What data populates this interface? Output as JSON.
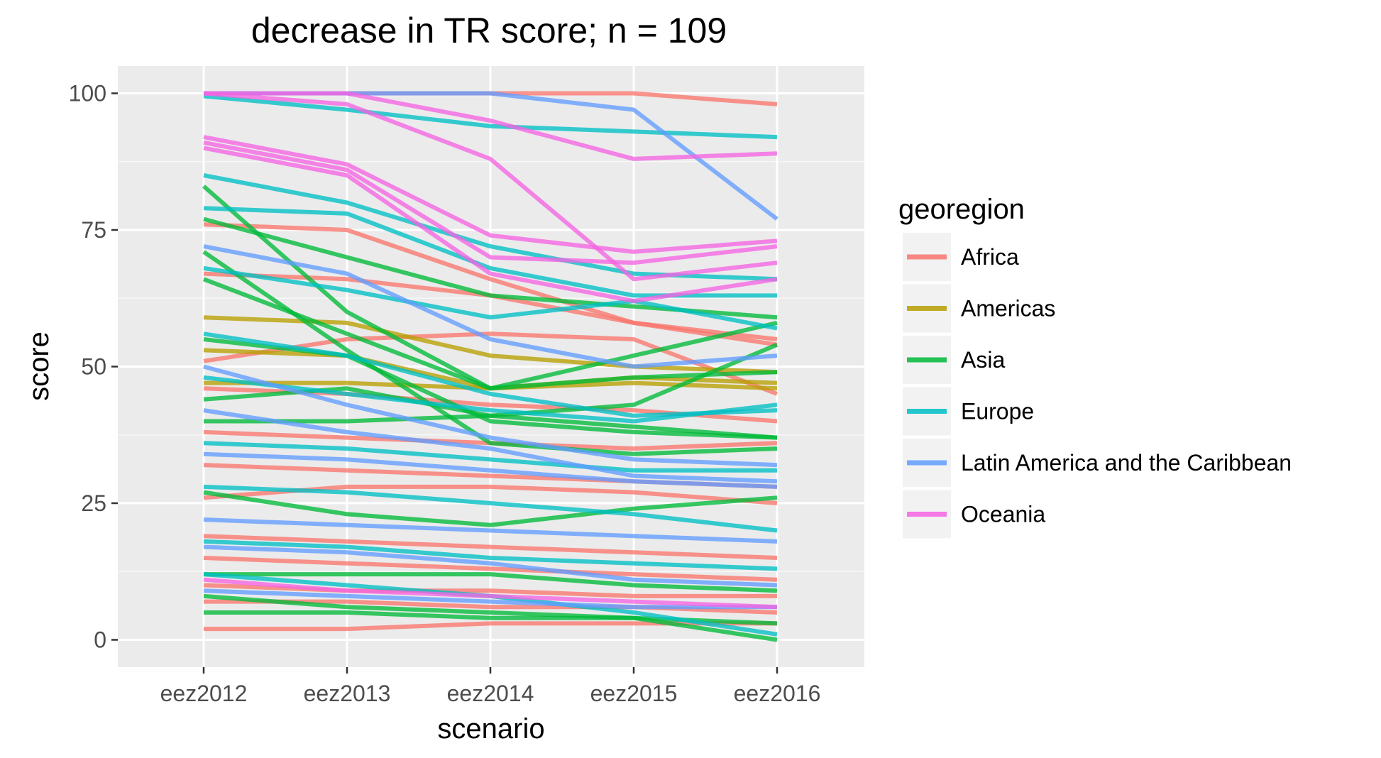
{
  "chart_data": {
    "type": "line",
    "title": "decrease in TR score; n = 109",
    "xlabel": "scenario",
    "ylabel": "score",
    "x": [
      "eez2012",
      "eez2013",
      "eez2014",
      "eez2015",
      "eez2016"
    ],
    "ylim": [
      -5,
      105
    ],
    "yticks": [
      0,
      25,
      50,
      75,
      100
    ],
    "grid": true,
    "legend": {
      "title": "georegion",
      "position": "right",
      "entries": [
        {
          "name": "Africa",
          "color": "#F8766D"
        },
        {
          "name": "Americas",
          "color": "#B79F00"
        },
        {
          "name": "Asia",
          "color": "#00BA38"
        },
        {
          "name": "Europe",
          "color": "#00BFC4"
        },
        {
          "name": "Latin America and the Caribbean",
          "color": "#619CFF"
        },
        {
          "name": "Oceania",
          "color": "#F564E3"
        }
      ]
    },
    "series": [
      {
        "group": "Africa",
        "values": [
          100,
          100,
          100,
          100,
          98
        ]
      },
      {
        "group": "Africa",
        "values": [
          76,
          75,
          66,
          58,
          54
        ]
      },
      {
        "group": "Africa",
        "values": [
          67,
          66,
          63,
          58,
          55
        ]
      },
      {
        "group": "Africa",
        "values": [
          51,
          55,
          56,
          55,
          45
        ]
      },
      {
        "group": "Africa",
        "values": [
          46,
          45,
          43,
          42,
          40
        ]
      },
      {
        "group": "Africa",
        "values": [
          38,
          37,
          36,
          35,
          36
        ]
      },
      {
        "group": "Africa",
        "values": [
          32,
          31,
          30,
          29,
          28
        ]
      },
      {
        "group": "Africa",
        "values": [
          26,
          28,
          28,
          27,
          25
        ]
      },
      {
        "group": "Africa",
        "values": [
          19,
          18,
          17,
          16,
          15
        ]
      },
      {
        "group": "Africa",
        "values": [
          15,
          14,
          13,
          12,
          11
        ]
      },
      {
        "group": "Africa",
        "values": [
          10,
          9,
          9,
          8,
          8
        ]
      },
      {
        "group": "Africa",
        "values": [
          7,
          7,
          6,
          6,
          5
        ]
      },
      {
        "group": "Africa",
        "values": [
          2,
          2,
          3,
          3,
          3
        ]
      },
      {
        "group": "Americas",
        "values": [
          59,
          58,
          52,
          50,
          49
        ]
      },
      {
        "group": "Americas",
        "values": [
          53,
          52,
          46,
          48,
          47
        ]
      },
      {
        "group": "Americas",
        "values": [
          47,
          47,
          46,
          47,
          46
        ]
      },
      {
        "group": "Asia",
        "values": [
          83,
          60,
          46,
          52,
          58
        ]
      },
      {
        "group": "Asia",
        "values": [
          77,
          70,
          63,
          61,
          59
        ]
      },
      {
        "group": "Asia",
        "values": [
          71,
          53,
          36,
          34,
          35
        ]
      },
      {
        "group": "Asia",
        "values": [
          66,
          56,
          46,
          48,
          49
        ]
      },
      {
        "group": "Asia",
        "values": [
          55,
          52,
          40,
          38,
          37
        ]
      },
      {
        "group": "Asia",
        "values": [
          44,
          46,
          41,
          43,
          54
        ]
      },
      {
        "group": "Asia",
        "values": [
          40,
          40,
          41,
          39,
          37
        ]
      },
      {
        "group": "Asia",
        "values": [
          27,
          23,
          21,
          24,
          26
        ]
      },
      {
        "group": "Asia",
        "values": [
          12,
          12,
          12,
          10,
          9
        ]
      },
      {
        "group": "Asia",
        "values": [
          8,
          6,
          5,
          4,
          0
        ]
      },
      {
        "group": "Asia",
        "values": [
          5,
          5,
          4,
          4,
          3
        ]
      },
      {
        "group": "Europe",
        "values": [
          99.5,
          97,
          94,
          93,
          92
        ]
      },
      {
        "group": "Europe",
        "values": [
          85,
          80,
          72,
          67,
          66
        ]
      },
      {
        "group": "Europe",
        "values": [
          79,
          78,
          68,
          63,
          63
        ]
      },
      {
        "group": "Europe",
        "values": [
          68,
          64,
          59,
          62,
          57
        ]
      },
      {
        "group": "Europe",
        "values": [
          56,
          52,
          45,
          41,
          42
        ]
      },
      {
        "group": "Europe",
        "values": [
          48,
          45,
          42,
          40,
          43
        ]
      },
      {
        "group": "Europe",
        "values": [
          36,
          35,
          33,
          31,
          31
        ]
      },
      {
        "group": "Europe",
        "values": [
          28,
          27,
          25,
          23,
          20
        ]
      },
      {
        "group": "Europe",
        "values": [
          18,
          17,
          15,
          14,
          13
        ]
      },
      {
        "group": "Europe",
        "values": [
          12,
          10,
          8,
          5,
          1
        ]
      },
      {
        "group": "Latin America and the Caribbean",
        "values": [
          100,
          100,
          100,
          97,
          77
        ]
      },
      {
        "group": "Latin America and the Caribbean",
        "values": [
          72,
          67,
          55,
          50,
          52
        ]
      },
      {
        "group": "Latin America and the Caribbean",
        "values": [
          50,
          43,
          37,
          33,
          32
        ]
      },
      {
        "group": "Latin America and the Caribbean",
        "values": [
          42,
          38,
          35,
          30,
          29
        ]
      },
      {
        "group": "Latin America and the Caribbean",
        "values": [
          34,
          33,
          31,
          29,
          28
        ]
      },
      {
        "group": "Latin America and the Caribbean",
        "values": [
          22,
          21,
          20,
          19,
          18
        ]
      },
      {
        "group": "Latin America and the Caribbean",
        "values": [
          17,
          16,
          14,
          11,
          10
        ]
      },
      {
        "group": "Latin America and the Caribbean",
        "values": [
          9,
          8,
          7,
          6,
          6
        ]
      },
      {
        "group": "Oceania",
        "values": [
          100,
          100,
          95,
          88,
          89
        ]
      },
      {
        "group": "Oceania",
        "values": [
          92,
          87,
          74,
          71,
          73
        ]
      },
      {
        "group": "Oceania",
        "values": [
          91,
          86,
          70,
          69,
          72
        ]
      },
      {
        "group": "Oceania",
        "values": [
          90,
          85,
          67,
          62,
          66
        ]
      },
      {
        "group": "Oceania",
        "values": [
          100,
          98,
          88,
          66,
          69
        ]
      },
      {
        "group": "Oceania",
        "values": [
          11,
          9,
          8,
          7,
          6
        ]
      }
    ]
  }
}
